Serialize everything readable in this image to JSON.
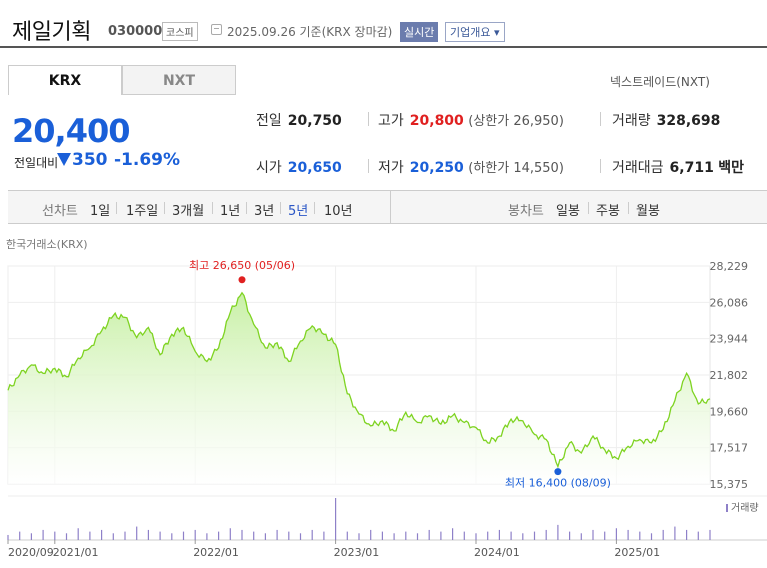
{
  "header": {
    "company_name": "제일기획",
    "stock_code": "030000",
    "market_badge": "코스피",
    "basis_text": "2025.09.26  기준(KRX 장마감)",
    "realtime_badge": "실시간",
    "overview_button": "기업개요 ▾"
  },
  "tabs": {
    "krx": "KRX",
    "nxt": "NXT",
    "nextrade_link": "넥스트레이드(NXT)"
  },
  "quote": {
    "price": "20,400",
    "change_label": "전일대비",
    "change_value": "350",
    "change_rate": "-1.69%",
    "prev_close_label": "전일",
    "prev_close": "20,750",
    "high_label": "고가",
    "high": "20,800",
    "upper_limit": "(상한가 26,950)",
    "volume_label": "거래량",
    "volume": "328,698",
    "open_label": "시가",
    "open": "20,650",
    "low_label": "저가",
    "low": "20,250",
    "lower_limit": "(하한가 14,550)",
    "amount_label": "거래대금",
    "amount": "6,711",
    "amount_unit": "백만"
  },
  "periods": {
    "line_label": "선차트",
    "line_items": [
      "1일",
      "1주일",
      "3개월",
      "1년",
      "3년",
      "5년",
      "10년"
    ],
    "active": "5년",
    "candle_label": "봉차트",
    "candle_items": [
      "일봉",
      "주봉",
      "월봉"
    ]
  },
  "colors": {
    "price_blue": "#1a5fd8",
    "high_red": "#e02020",
    "line_green": "#7ed321",
    "area_green": "#c8f0a6",
    "volume_purple": "#8e80c8"
  },
  "chart_data": {
    "type": "area",
    "source_label": "한국거래소(KRX)",
    "y_ticks": [
      28229,
      26086,
      23944,
      21802,
      19660,
      17517,
      15375
    ],
    "ylim": [
      15375,
      28229
    ],
    "x_ticks": [
      "2020/09",
      "2021/01",
      "2022/01",
      "2023/01",
      "2024/01",
      "2025/01"
    ],
    "x_tick_months": [
      0,
      4,
      16,
      28,
      40,
      52
    ],
    "max_annotation": {
      "label": "최고 26,650 (05/06)",
      "month": 20,
      "value": 26650
    },
    "min_annotation": {
      "label": "최저 16,400 (08/09)",
      "month": 47,
      "value": 16400
    },
    "volume_label": "거래량",
    "series": [
      {
        "values": [
          [
            0,
            20900
          ],
          [
            1,
            21800
          ],
          [
            2,
            22400
          ],
          [
            3,
            21900
          ],
          [
            4,
            22200
          ],
          [
            5,
            21700
          ],
          [
            6,
            22800
          ],
          [
            7,
            23400
          ],
          [
            8,
            24400
          ],
          [
            9,
            25300
          ],
          [
            10,
            25200
          ],
          [
            11,
            24000
          ],
          [
            12,
            24600
          ],
          [
            13,
            23000
          ],
          [
            14,
            24200
          ],
          [
            15,
            24600
          ],
          [
            16,
            23200
          ],
          [
            17,
            22600
          ],
          [
            18,
            23400
          ],
          [
            19,
            25500
          ],
          [
            20,
            26650
          ],
          [
            21,
            24800
          ],
          [
            22,
            23400
          ],
          [
            23,
            23700
          ],
          [
            24,
            22600
          ],
          [
            25,
            23800
          ],
          [
            26,
            24700
          ],
          [
            27,
            24200
          ],
          [
            28,
            23600
          ],
          [
            29,
            20700
          ],
          [
            30,
            19500
          ],
          [
            31,
            18800
          ],
          [
            32,
            19100
          ],
          [
            33,
            18500
          ],
          [
            34,
            19600
          ],
          [
            35,
            19000
          ],
          [
            36,
            19400
          ],
          [
            37,
            18900
          ],
          [
            38,
            19400
          ],
          [
            39,
            19000
          ],
          [
            40,
            18700
          ],
          [
            41,
            17800
          ],
          [
            42,
            18200
          ],
          [
            43,
            19200
          ],
          [
            44,
            19100
          ],
          [
            45,
            18300
          ],
          [
            46,
            18000
          ],
          [
            47,
            16400
          ],
          [
            48,
            17800
          ],
          [
            49,
            17200
          ],
          [
            50,
            18200
          ],
          [
            51,
            17400
          ],
          [
            52,
            16900
          ],
          [
            53,
            17600
          ],
          [
            54,
            18000
          ],
          [
            55,
            17800
          ],
          [
            56,
            18600
          ],
          [
            57,
            20300
          ],
          [
            58,
            21900
          ],
          [
            59,
            20100
          ],
          [
            60,
            20400
          ]
        ]
      }
    ],
    "volume": [
      3,
      5,
      4,
      6,
      5,
      4,
      7,
      5,
      6,
      4,
      5,
      8,
      6,
      5,
      4,
      5,
      6,
      4,
      5,
      7,
      6,
      5,
      4,
      6,
      5,
      4,
      6,
      5,
      25,
      5,
      4,
      6,
      5,
      4,
      5,
      4,
      6,
      5,
      7,
      5,
      4,
      5,
      6,
      5,
      4,
      5,
      6,
      9,
      5,
      4,
      6,
      5,
      7,
      6,
      5,
      4,
      6,
      8,
      6,
      5,
      6
    ]
  }
}
